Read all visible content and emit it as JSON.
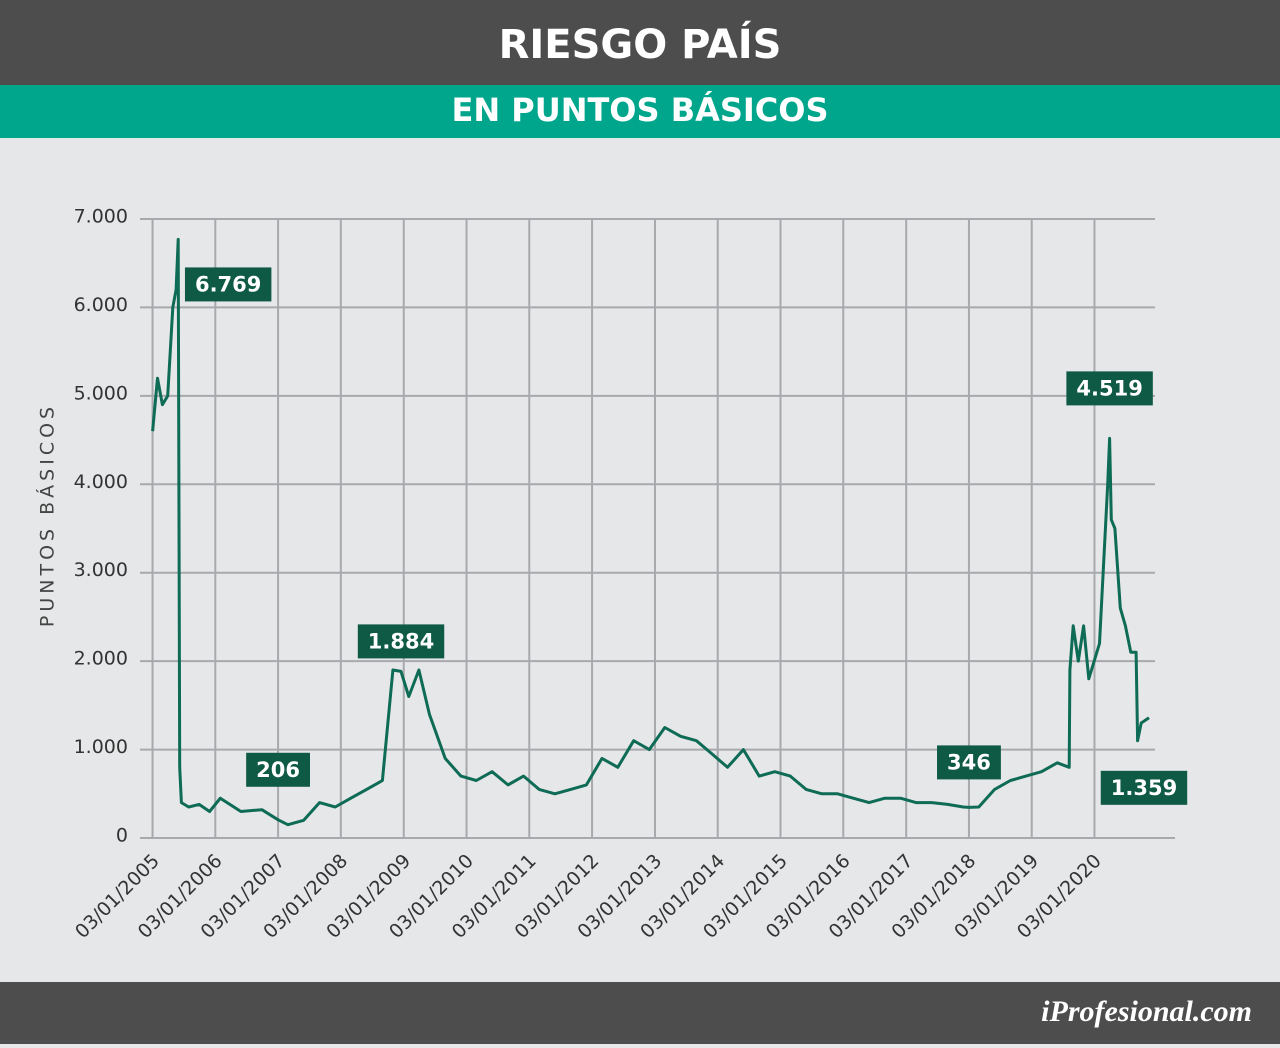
{
  "chart_data": {
    "type": "line",
    "title": "RIESGO PAÍS",
    "subtitle": "EN PUNTOS BÁSICOS",
    "ylabel": "PUNTOS BÁSICOS",
    "color": "#0e6b55",
    "grid": true,
    "xlim": [
      "2004-10-22",
      "2020-12-20"
    ],
    "ylim": [
      0,
      7000
    ],
    "yticks": [
      0,
      {
        "value": 1000,
        "label": "1.000"
      },
      {
        "value": 2000,
        "label": "2.000"
      },
      {
        "value": 3000,
        "label": "3.000"
      },
      {
        "value": 4000,
        "label": "4.000"
      },
      {
        "value": 5000,
        "label": "5.000"
      },
      {
        "value": 6000,
        "label": "6.000"
      },
      {
        "value": 7000,
        "label": "7.000"
      }
    ],
    "xticks": [
      {
        "value": "2005-01-03",
        "label": "03/01/2005"
      },
      {
        "value": "2006-01-03",
        "label": "03/01/2006"
      },
      {
        "value": "2007-01-03",
        "label": "03/01/2007"
      },
      {
        "value": "2008-01-03",
        "label": "03/01/2008"
      },
      {
        "value": "2009-01-03",
        "label": "03/01/2009"
      },
      {
        "value": "2010-01-03",
        "label": "03/01/2010"
      },
      {
        "value": "2011-01-03",
        "label": "03/01/2011"
      },
      {
        "value": "2012-01-03",
        "label": "03/01/2012"
      },
      {
        "value": "2013-01-03",
        "label": "03/01/2013"
      },
      {
        "value": "2014-01-03",
        "label": "03/01/2014"
      },
      {
        "value": "2015-01-03",
        "label": "03/01/2015"
      },
      {
        "value": "2016-01-03",
        "label": "03/01/2016"
      },
      {
        "value": "2017-01-03",
        "label": "03/01/2017"
      },
      {
        "value": "2018-01-03",
        "label": "03/01/2018"
      },
      {
        "value": "2019-01-03",
        "label": "03/01/2019"
      },
      {
        "value": "2020-01-03",
        "label": "03/01/2020"
      }
    ],
    "x": [
      "2005-01-03",
      "2005-02-01",
      "2005-03-01",
      "2005-04-01",
      "2005-05-01",
      "2005-05-20",
      "2005-06-01",
      "2005-06-10",
      "2005-06-20",
      "2005-08-01",
      "2005-10-01",
      "2005-12-01",
      "2006-02-01",
      "2006-06-01",
      "2006-10-01",
      "2007-01-03",
      "2007-03-01",
      "2007-06-01",
      "2007-09-01",
      "2007-12-01",
      "2008-03-01",
      "2008-06-01",
      "2008-09-01",
      "2008-11-01",
      "2008-12-18",
      "2009-02-01",
      "2009-04-01",
      "2009-06-01",
      "2009-09-01",
      "2009-12-01",
      "2010-03-01",
      "2010-06-01",
      "2010-09-01",
      "2010-12-01",
      "2011-03-01",
      "2011-06-01",
      "2011-09-01",
      "2011-12-01",
      "2012-03-01",
      "2012-06-01",
      "2012-09-01",
      "2012-12-01",
      "2013-03-01",
      "2013-06-01",
      "2013-09-01",
      "2013-12-01",
      "2014-03-01",
      "2014-06-01",
      "2014-09-01",
      "2014-12-01",
      "2015-03-01",
      "2015-06-01",
      "2015-09-01",
      "2015-12-01",
      "2016-03-01",
      "2016-06-01",
      "2016-09-01",
      "2016-12-01",
      "2017-03-01",
      "2017-06-01",
      "2017-09-01",
      "2017-12-01",
      "2018-01-03",
      "2018-03-01",
      "2018-06-01",
      "2018-09-01",
      "2018-12-01",
      "2019-03-01",
      "2019-06-01",
      "2019-08-09",
      "2019-08-13",
      "2019-09-01",
      "2019-10-01",
      "2019-11-01",
      "2019-12-01",
      "2020-02-01",
      "2020-03-20",
      "2020-03-31",
      "2020-04-10",
      "2020-05-01",
      "2020-06-01",
      "2020-07-01",
      "2020-08-01",
      "2020-09-01",
      "2020-09-10",
      "2020-10-01",
      "2020-11-15"
    ],
    "values": [
      4600,
      5200,
      4900,
      5000,
      6000,
      6200,
      6769,
      800,
      400,
      350,
      380,
      300,
      450,
      300,
      320,
      206,
      150,
      200,
      400,
      350,
      450,
      550,
      650,
      1900,
      1884,
      1600,
      1900,
      1400,
      900,
      700,
      650,
      750,
      600,
      700,
      550,
      500,
      550,
      600,
      900,
      800,
      1100,
      1000,
      1250,
      1150,
      1100,
      950,
      800,
      1000,
      700,
      750,
      700,
      550,
      500,
      500,
      450,
      400,
      450,
      450,
      400,
      400,
      380,
      350,
      346,
      350,
      550,
      650,
      700,
      750,
      850,
      800,
      1900,
      2400,
      2000,
      2400,
      1800,
      2200,
      4000,
      4519,
      3600,
      3500,
      2600,
      2400,
      2100,
      2100,
      1100,
      1300,
      1359
    ],
    "value_labels": [
      null,
      null,
      null,
      null,
      null,
      null,
      "6.769",
      null,
      null,
      null,
      null,
      null,
      null,
      null,
      null,
      "206",
      null,
      null,
      null,
      null,
      null,
      null,
      null,
      null,
      "1.884",
      null,
      null,
      null,
      null,
      null,
      null,
      null,
      null,
      null,
      null,
      null,
      null,
      null,
      null,
      null,
      null,
      null,
      null,
      null,
      null,
      null,
      null,
      null,
      null,
      null,
      null,
      null,
      null,
      null,
      null,
      null,
      null,
      null,
      null,
      null,
      null,
      null,
      "346",
      null,
      null,
      null,
      null,
      null,
      null,
      null,
      null,
      null,
      null,
      null,
      null,
      null,
      null,
      "4.519",
      null,
      null,
      null,
      null,
      null,
      null,
      null,
      null,
      "1.359"
    ]
  },
  "footer": {
    "brand": "iProfesional.com"
  }
}
